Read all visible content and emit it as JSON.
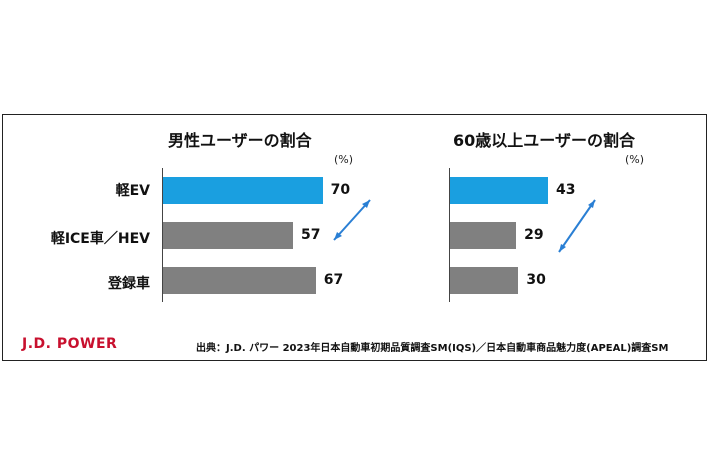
{
  "brand": "J.D. POWER",
  "source": "出典：J.D. パワー 2023年日本自動車初期品質調査SM(IQS)／日本自動車商品魅力度(APEAL)調査SM",
  "colors": {
    "highlight": "#1a9fe0",
    "bar": "#808080",
    "arrow": "#2a7fd4",
    "brand": "#c8102e"
  },
  "chart_data": [
    {
      "type": "bar",
      "orientation": "horizontal",
      "title": "男性ユーザーの割合",
      "unit": "(%)",
      "categories": [
        "軽EV",
        "軽ICE車／HEV",
        "登録車"
      ],
      "values": [
        70,
        57,
        67
      ],
      "value_labels": [
        "70",
        "57",
        "67"
      ],
      "highlight_index": 0
    },
    {
      "type": "bar",
      "orientation": "horizontal",
      "title": "60歳以上ユーザーの割合",
      "unit": "(%)",
      "categories": [
        "軽EV",
        "軽ICE車／HEV",
        "登録車"
      ],
      "values": [
        43,
        29,
        30
      ],
      "value_labels": [
        "43",
        "29",
        "30"
      ],
      "highlight_index": 0
    }
  ]
}
